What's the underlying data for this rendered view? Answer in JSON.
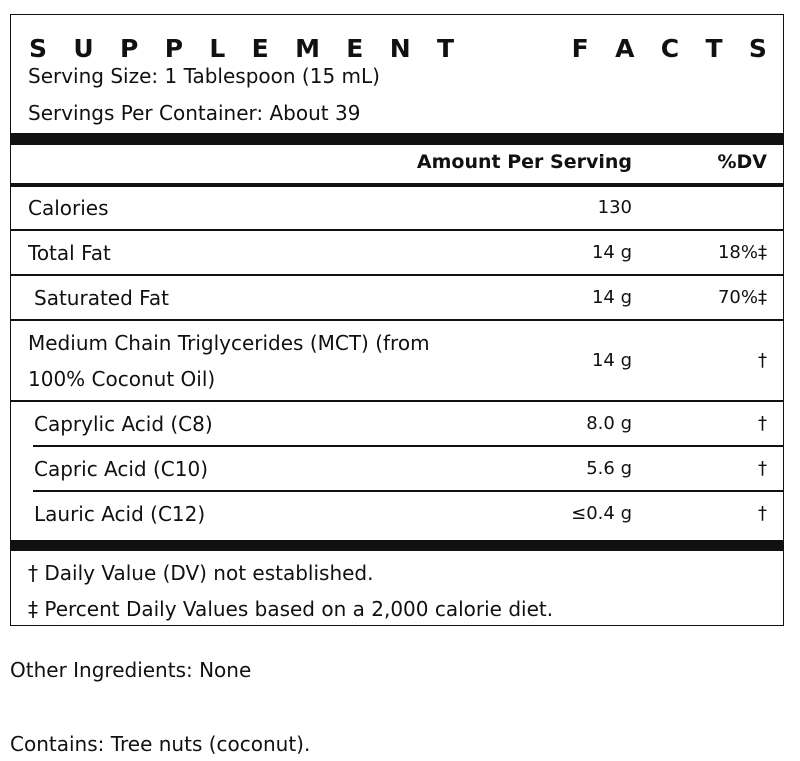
{
  "label": {
    "title_letters": [
      "S",
      "U",
      "P",
      "P",
      "L",
      "E",
      "M",
      "E",
      "N",
      "T",
      "F",
      "A",
      "C",
      "T",
      "S"
    ],
    "serving_size": "Serving Size: 1 Tablespoon (15 mL)",
    "servings_per_container": "Servings Per Container: About 39",
    "header": {
      "amount": "Amount Per Serving",
      "dv": "%DV"
    },
    "rows": [
      {
        "label": "Calories",
        "amount": "130",
        "dv": ""
      },
      {
        "label": "Total Fat",
        "amount": "14 g",
        "dv": "18%‡"
      },
      {
        "label": "Saturated Fat",
        "amount": "14 g",
        "dv": "70%‡"
      },
      {
        "label_line1": "Medium Chain Triglycerides (MCT) (from",
        "label_line2": "100% Coconut Oil)",
        "amount": "14 g",
        "dv": "†"
      },
      {
        "label": "Caprylic Acid (C8)",
        "amount": "8.0 g",
        "dv": "†"
      },
      {
        "label": "Capric Acid (C10)",
        "amount": "5.6 g",
        "dv": "†"
      },
      {
        "label": "Lauric Acid (C12)",
        "amount": "≤0.4 g",
        "dv": "†"
      }
    ],
    "footnotes": [
      "† Daily Value (DV) not established.",
      "‡ Percent Daily Values based on a 2,000 calorie diet."
    ]
  },
  "other_ingredients": "Other Ingredients: None",
  "contains": "Contains: Tree nuts (coconut)."
}
